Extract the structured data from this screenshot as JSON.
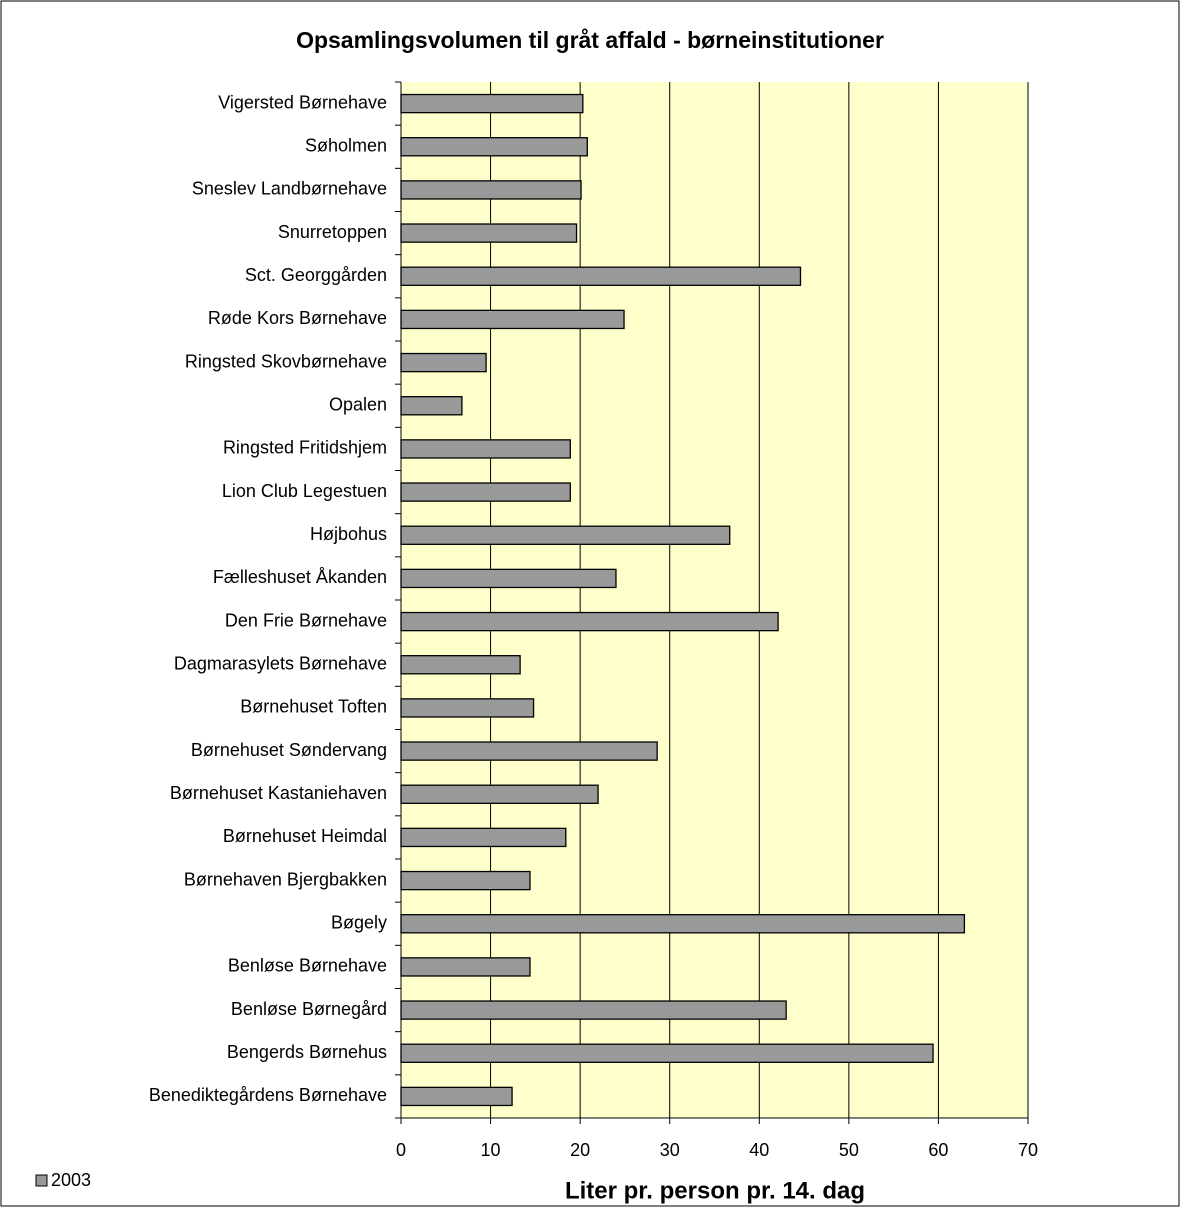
{
  "chart_data": {
    "type": "bar",
    "orientation": "horizontal",
    "title": "Opsamlingsvolumen til gråt affald - børneinstitutioner",
    "x_label": "Liter pr. person pr. 14. dag",
    "categories": [
      "Vigersted Børnehave",
      "Søholmen",
      "Sneslev Landbørnehave",
      "Snurretoppen",
      "Sct. Georggården",
      "Røde Kors Børnehave",
      "Ringsted Skovbørnehave",
      "Opalen",
      "Ringsted Fritidshjem",
      "Lion Club Legestuen",
      "Højbohus",
      "Fælleshuset Åkanden",
      "Den Frie Børnehave",
      "Dagmarasylets Børnehave",
      "Børnehuset Toften",
      "Børnehuset Søndervang",
      "Børnehuset Kastaniehaven",
      "Børnehuset Heimdal",
      "Børnehaven Bjergbakken",
      "Bøgely",
      "Benløse Børnehave",
      "Benløse Børnegård",
      "Bengerds Børnehus",
      "Benediktegårdens Børnehave"
    ],
    "series": [
      {
        "name": "2003",
        "color": "#999999",
        "values": [
          20.3,
          20.8,
          20.1,
          19.6,
          44.6,
          24.9,
          9.5,
          6.8,
          18.9,
          18.9,
          36.7,
          24.0,
          42.1,
          13.3,
          14.8,
          28.6,
          22.0,
          18.4,
          14.4,
          62.9,
          14.4,
          43.0,
          59.4,
          12.4
        ]
      }
    ],
    "xlim": [
      0,
      70
    ],
    "xticks": [
      0,
      10,
      20,
      30,
      40,
      50,
      60,
      70
    ],
    "grid": true,
    "legend": "bottom-left"
  }
}
